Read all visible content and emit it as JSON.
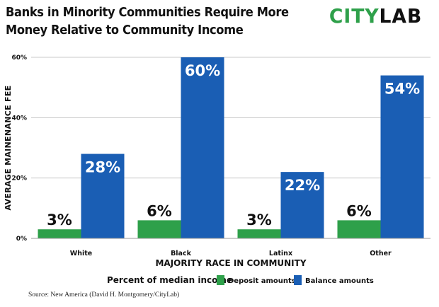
{
  "title_lines": [
    "Banks in Minority Communities Require More",
    "Money Relative to Community Income"
  ],
  "logo": {
    "part1": "CITY",
    "part2": "LAB"
  },
  "source": "Source: New America (David H. Montgomery/CityLab)",
  "colors": {
    "deposit": "#2ea04a",
    "balance": "#1a5eb4",
    "grid": "#c8c8c8",
    "text": "#111111"
  },
  "chart_data": {
    "type": "bar",
    "categories": [
      "White",
      "Black",
      "Latinx",
      "Other"
    ],
    "series": [
      {
        "name": "Deposit amounts",
        "values": [
          3,
          6,
          3,
          6
        ],
        "labels": [
          "3%",
          "6%",
          "3%",
          "6%"
        ]
      },
      {
        "name": "Balance amounts",
        "values": [
          28,
          60,
          22,
          54
        ],
        "labels": [
          "28%",
          "60%",
          "22%",
          "54%"
        ]
      }
    ],
    "ylim": [
      0,
      60
    ],
    "yticks": [
      0,
      20,
      40,
      60
    ],
    "ytick_labels": [
      "0%",
      "20%",
      "40%",
      "60%"
    ],
    "xlabel": "MAJORITY RACE IN COMMUNITY",
    "ylabel": "AVERAGE MAINENANCE FEE",
    "legend_title": "Percent of median income",
    "legend_position": "bottom-center",
    "grid": true
  }
}
